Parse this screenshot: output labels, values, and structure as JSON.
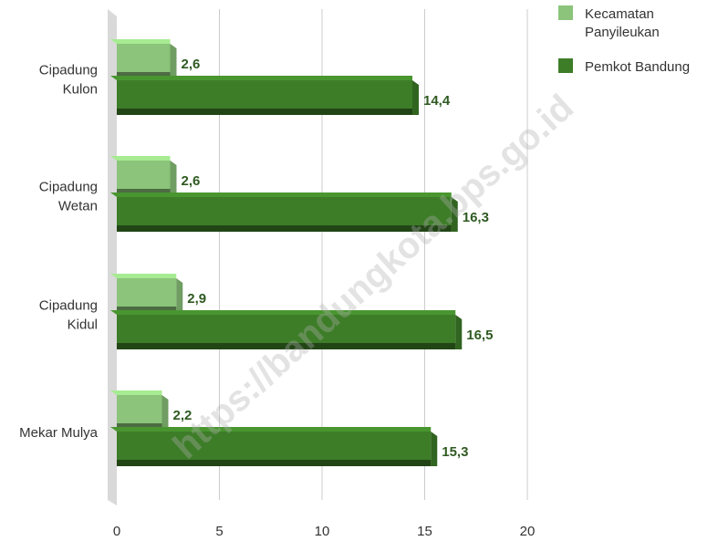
{
  "chart_data": {
    "type": "bar",
    "orientation": "horizontal",
    "style": "3d",
    "categories": [
      [
        "Cipadung",
        "Kulon"
      ],
      [
        "Cipadung",
        "Wetan"
      ],
      [
        "Cipadung",
        "Kidul"
      ],
      [
        "Mekar Mulya"
      ]
    ],
    "series": [
      {
        "name": [
          "Kecamatan",
          "Panyileukan"
        ],
        "color": "#8bc47a",
        "values": [
          2.6,
          2.6,
          2.9,
          2.2
        ],
        "labels": [
          "2,6",
          "2,6",
          "2,9",
          "2,2"
        ]
      },
      {
        "name": [
          "Pemkot Bandung"
        ],
        "color": "#3d7d28",
        "values": [
          14.4,
          16.3,
          16.5,
          15.3
        ],
        "labels": [
          "14,4",
          "16,3",
          "16,5",
          "15,3"
        ]
      }
    ],
    "xlim": [
      0,
      20
    ],
    "xticks": [
      "0",
      "5",
      "10",
      "15",
      "20"
    ],
    "grid": true,
    "legend_position": "top-right",
    "title": "",
    "xlabel": "",
    "ylabel": ""
  },
  "watermark": "https://bandungkota.bps.go.id"
}
